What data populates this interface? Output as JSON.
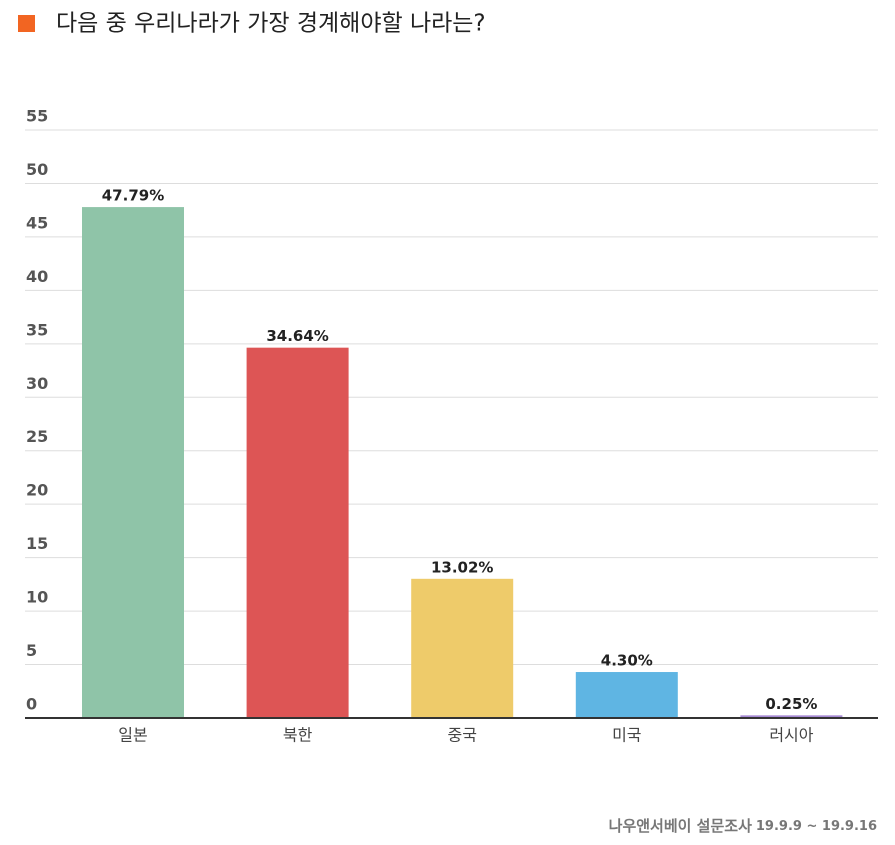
{
  "chart_data": {
    "type": "bar",
    "title": "다음 중 우리나라가 가장 경계해야할 나라는?",
    "categories": [
      "일본",
      "북한",
      "중국",
      "미국",
      "러시아"
    ],
    "values": [
      47.79,
      34.64,
      13.02,
      4.3,
      0.25
    ],
    "value_labels": [
      "47.79%",
      "34.64%",
      "13.02%",
      "4.30%",
      "0.25%"
    ],
    "colors": [
      "#8fc4a8",
      "#dd5555",
      "#eecb6a",
      "#5fb5e3",
      "#a78bd4"
    ],
    "ylim": [
      0,
      55
    ],
    "yticks": [
      0,
      5,
      10,
      15,
      20,
      25,
      30,
      35,
      40,
      45,
      50,
      55
    ],
    "grid": true,
    "source": "나우앤서베이 설문조사",
    "period": "19.9.9 ~ 19.9.16"
  }
}
